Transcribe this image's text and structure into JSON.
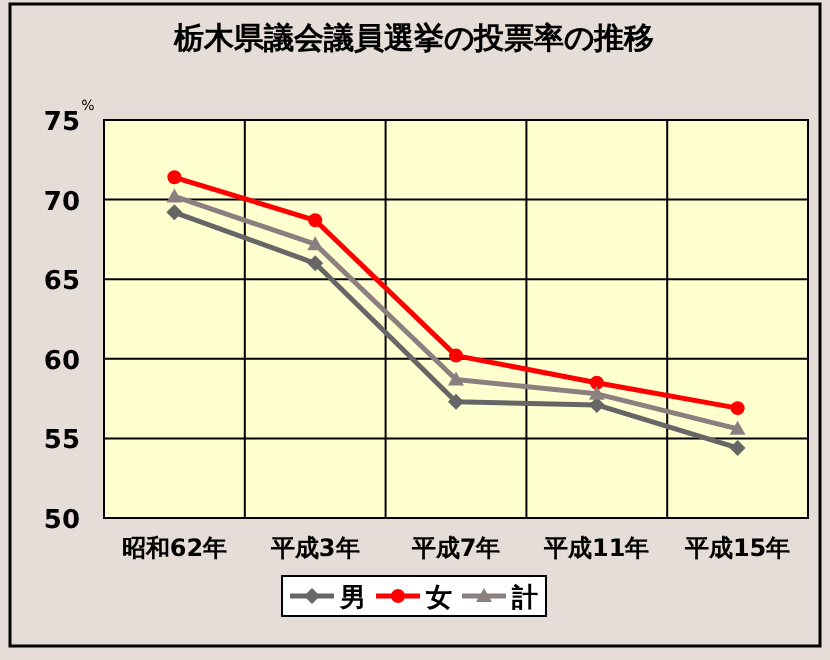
{
  "chart_data": {
    "type": "line",
    "title": "栃木県議会議員選挙の投票率の推移",
    "ylabel": "%",
    "categories": [
      "昭和62年",
      "平成3年",
      "平成7年",
      "平成11年",
      "平成15年"
    ],
    "series": [
      {
        "name": "男",
        "color": "#666666",
        "marker": "diamond",
        "values": [
          69.2,
          66.0,
          57.3,
          57.1,
          54.4
        ]
      },
      {
        "name": "女",
        "color": "#ff0000",
        "marker": "circle",
        "values": [
          71.4,
          68.7,
          60.2,
          58.5,
          56.9
        ]
      },
      {
        "name": "計",
        "color": "#8c7f80",
        "marker": "triangle",
        "values": [
          70.2,
          67.2,
          58.7,
          57.8,
          55.6
        ]
      }
    ],
    "ylim": [
      50,
      75
    ],
    "yticks": [
      50,
      55,
      60,
      65,
      70,
      75
    ],
    "grid": true,
    "legend": "bottom"
  }
}
